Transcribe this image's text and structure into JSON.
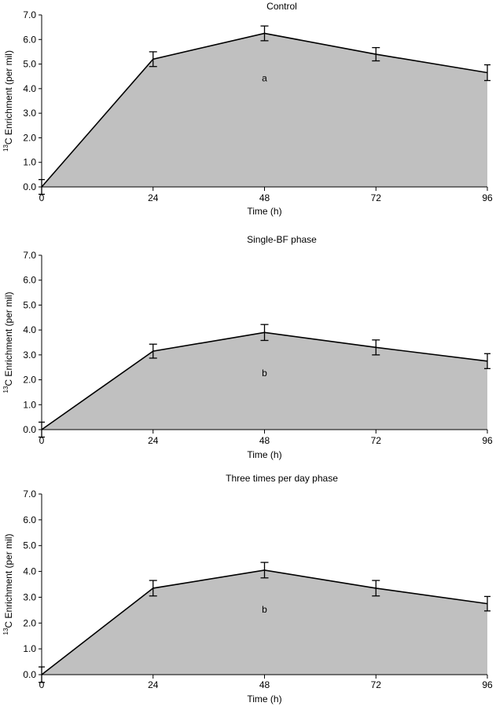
{
  "chart_data": [
    {
      "type": "area",
      "title": "Control",
      "xlabel": "Time (h)",
      "ylabel_sup": "13",
      "ylabel": "C Enrichment (per mil)",
      "x": [
        0,
        24,
        48,
        72,
        96
      ],
      "x_ticks": [
        "0",
        "24",
        "48",
        "72",
        "96"
      ],
      "y_ticks": [
        "0.0",
        "1.0",
        "2.0",
        "3.0",
        "4.0",
        "5.0",
        "6.0",
        "7.0"
      ],
      "xlim": [
        0,
        96
      ],
      "ylim": [
        0,
        7
      ],
      "values": [
        0.0,
        5.2,
        6.25,
        5.4,
        4.65
      ],
      "error": [
        0.3,
        0.3,
        0.3,
        0.27,
        0.32
      ],
      "annotation": {
        "text": "a",
        "x": 48,
        "y": 4.3
      },
      "fill_color": "#c0c0c0",
      "grid": false
    },
    {
      "type": "area",
      "title": "Single-BF phase",
      "xlabel": "Time (h)",
      "ylabel_sup": "13",
      "ylabel": "C Enrichment (per mil)",
      "x": [
        0,
        24,
        48,
        72,
        96
      ],
      "x_ticks": [
        "0",
        "24",
        "48",
        "72",
        "96"
      ],
      "y_ticks": [
        "0.0",
        "1.0",
        "2.0",
        "3.0",
        "4.0",
        "5.0",
        "6.0",
        "7.0"
      ],
      "xlim": [
        0,
        96
      ],
      "ylim": [
        0,
        7
      ],
      "values": [
        0.0,
        3.15,
        3.9,
        3.3,
        2.75
      ],
      "error": [
        0.3,
        0.28,
        0.32,
        0.3,
        0.3
      ],
      "annotation": {
        "text": "b",
        "x": 48,
        "y": 2.15
      },
      "fill_color": "#c0c0c0",
      "grid": false
    },
    {
      "type": "area",
      "title": "Three times per day phase",
      "xlabel": "Time (h)",
      "ylabel_sup": "13",
      "ylabel": "C Enrichment (per mil)",
      "x": [
        0,
        24,
        48,
        72,
        96
      ],
      "x_ticks": [
        "0",
        "24",
        "48",
        "72",
        "96"
      ],
      "y_ticks": [
        "0.0",
        "1.0",
        "2.0",
        "3.0",
        "4.0",
        "5.0",
        "6.0",
        "7.0"
      ],
      "xlim": [
        0,
        96
      ],
      "ylim": [
        0,
        7
      ],
      "values": [
        0.0,
        3.35,
        4.05,
        3.35,
        2.75
      ],
      "error": [
        0.3,
        0.3,
        0.3,
        0.3,
        0.28
      ],
      "annotation": {
        "text": "b",
        "x": 48,
        "y": 2.4
      },
      "fill_color": "#c0c0c0",
      "grid": false
    }
  ]
}
